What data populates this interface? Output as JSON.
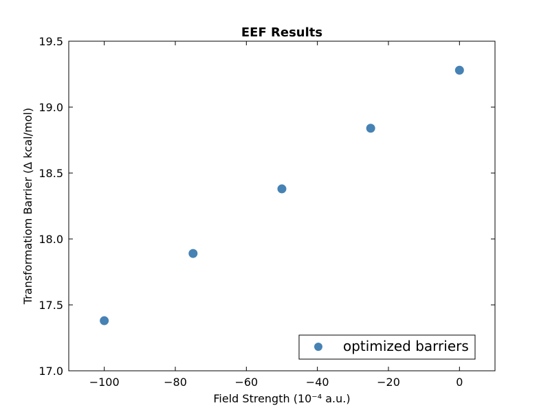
{
  "chart_data": {
    "type": "scatter",
    "title": "EEF Results",
    "xlabel": "Field Strength (10⁻⁴ a.u.)",
    "ylabel": "Transformatiom Barrier (Δ kcal/mol)",
    "xlim": [
      -110,
      10
    ],
    "ylim": [
      17.0,
      19.5
    ],
    "x_ticks": [
      -100,
      -80,
      -60,
      -40,
      -20,
      0
    ],
    "x_tick_labels": [
      "−100",
      "−80",
      "−60",
      "−40",
      "−20",
      "0"
    ],
    "y_ticks": [
      17.0,
      17.5,
      18.0,
      18.5,
      19.0,
      19.5
    ],
    "y_tick_labels": [
      "17.0",
      "17.5",
      "18.0",
      "18.5",
      "19.0",
      "19.5"
    ],
    "grid": false,
    "legend_position": "lower-right",
    "series": [
      {
        "name": "optimized barriers",
        "color": "#4682b4",
        "marker": "circle",
        "x": [
          -100,
          -75,
          -50,
          -25,
          0
        ],
        "y": [
          17.38,
          17.89,
          18.38,
          18.84,
          19.28
        ]
      }
    ]
  }
}
